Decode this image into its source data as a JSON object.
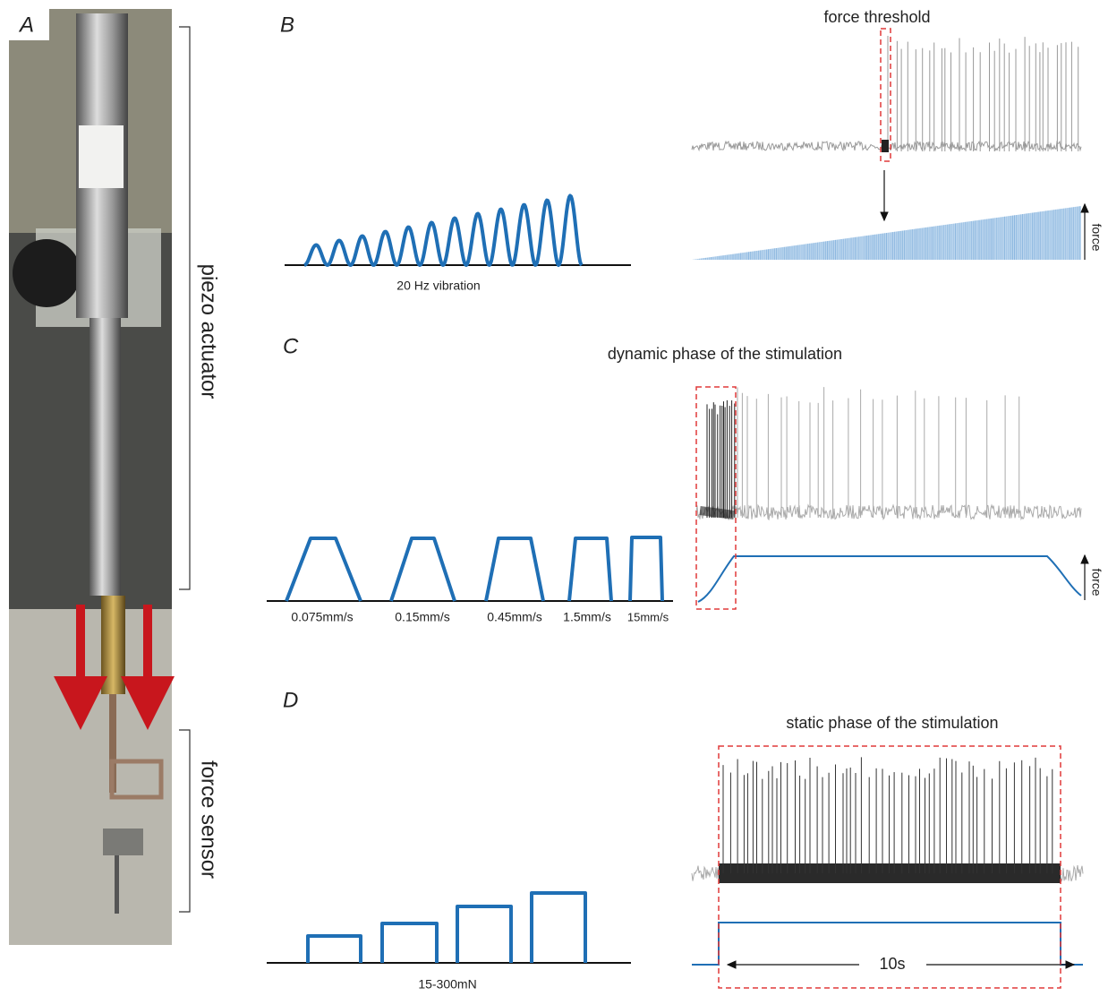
{
  "panels": {
    "a": {
      "label": "A",
      "annotations": [
        "piezo actuator",
        "force sensor"
      ]
    },
    "b": {
      "label": "B",
      "title": "force threshold",
      "stimulus_label": "20 Hz vibration",
      "force_label": "force"
    },
    "c": {
      "label": "C",
      "title": "dynamic phase of the stimulation",
      "speeds": [
        "0.075mm/s",
        "0.15mm/s",
        "0.45mm/s",
        "1.5mm/s",
        "15mm/s"
      ],
      "force_label": "force"
    },
    "d": {
      "label": "D",
      "title": "static phase of the stimulation",
      "stimulus_label": "15-300mN",
      "duration_label": "10s"
    }
  }
}
